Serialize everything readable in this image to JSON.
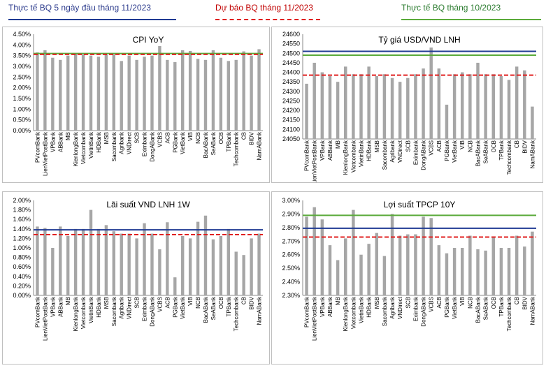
{
  "legend": {
    "actual_5day": {
      "label": "Thực tế BQ 5 ngày đầu tháng 11/2023",
      "color": "#1f3a93"
    },
    "forecast": {
      "label": "Dự báo BQ tháng 11/2023",
      "color": "#e02020"
    },
    "actual_prev": {
      "label": "Thực tế BQ tháng 10/2023",
      "color": "#5aaa3a"
    }
  },
  "chart_data": [
    {
      "type": "bar",
      "title": "CPI YoY",
      "categories": [
        "PVcomBank",
        "LienVietPostBank",
        "VPBank",
        "ABBank",
        "MB",
        "KienlongBank",
        "Vietcombank",
        "VietinBank",
        "HDBank",
        "MSB",
        "Sacombank",
        "Agribank",
        "VNDirect",
        "SCB",
        "Eximbank",
        "DongABank",
        "VCBS",
        "ACB",
        "PGBank",
        "VietBank",
        "VIB",
        "NCB",
        "BacABank",
        "SeABank",
        "OCB",
        "TPBank",
        "Techcombank",
        "CB",
        "BIDV",
        "NamABank"
      ],
      "values": [
        3.65,
        3.75,
        3.4,
        3.3,
        3.5,
        3.6,
        3.55,
        3.5,
        3.45,
        3.55,
        3.55,
        3.25,
        3.5,
        3.3,
        3.45,
        3.5,
        4.05,
        3.3,
        3.2,
        3.75,
        3.72,
        3.35,
        3.3,
        3.75,
        3.4,
        3.25,
        3.3,
        3.7,
        3.5,
        3.8
      ],
      "lines": {
        "actual_5day": null,
        "forecast": 3.56,
        "actual_prev": 3.6
      },
      "ylim": [
        0,
        4.5
      ],
      "yticks": [
        "0.00%",
        "0.50%",
        "1.00%",
        "1.50%",
        "2.00%",
        "2.50%",
        "3.00%",
        "3.50%",
        "4.00%",
        "4.50%"
      ]
    },
    {
      "type": "bar",
      "title": "Tỷ giá USD/VND LNH",
      "categories": [
        "PVcomBank",
        "LienVietPostBank",
        "VPBank",
        "ABBank",
        "MB",
        "KienlongBank",
        "Vietcombank",
        "VietinBank",
        "HDBank",
        "MSB",
        "Sacombank",
        "Agribank",
        "VNDirect",
        "SCB",
        "Eximbank",
        "DongABank",
        "VCBS",
        "ACB",
        "PGBank",
        "VietBank",
        "VIB",
        "NCB",
        "BacABank",
        "SeABank",
        "OCB",
        "TPBank",
        "Techcombank",
        "CB",
        "BIDV",
        "NamABank"
      ],
      "values": [
        24340,
        24450,
        24400,
        24380,
        24350,
        24430,
        24390,
        24390,
        24430,
        24380,
        24390,
        24370,
        24350,
        24370,
        24390,
        24420,
        24530,
        24420,
        24230,
        24390,
        24400,
        24390,
        24450,
        24390,
        24390,
        24380,
        24360,
        24430,
        24410,
        24220
      ],
      "lines": {
        "actual_5day": 24510,
        "forecast": 24385,
        "actual_prev": 24490
      },
      "ylim": [
        24050,
        24600
      ],
      "yticks": [
        "24050",
        "24100",
        "24150",
        "24200",
        "24250",
        "24300",
        "24350",
        "24400",
        "24450",
        "24500",
        "24550",
        "24600"
      ]
    },
    {
      "type": "bar",
      "title": "Lãi suất VND LNH 1W",
      "categories": [
        "PVcomBank",
        "LienVietPostBank",
        "VPBank",
        "ABBank",
        "MB",
        "KienlongBank",
        "Vietcombank",
        "VietinBank",
        "HDBank",
        "MSB",
        "Sacombank",
        "Agribank",
        "VNDirect",
        "SCB",
        "Eximbank",
        "DongABank",
        "VCBS",
        "ACB",
        "PGBank",
        "VietBank",
        "VIB",
        "NCB",
        "BacABank",
        "SeABank",
        "OCB",
        "TPBank",
        "Techcombank",
        "CB",
        "BIDV",
        "NamABank"
      ],
      "values": [
        1.45,
        1.42,
        1.0,
        1.45,
        1.25,
        1.4,
        1.4,
        1.8,
        1.4,
        1.48,
        1.35,
        1.3,
        1.3,
        1.2,
        1.52,
        1.3,
        0.97,
        1.54,
        0.38,
        1.25,
        1.2,
        1.55,
        1.68,
        1.18,
        1.25,
        1.4,
        0.92,
        0.85,
        1.2,
        1.3
      ],
      "lines": {
        "actual_5day": 1.38,
        "forecast": 1.28,
        "actual_prev": null
      },
      "ylim": [
        0,
        2.0
      ],
      "yticks": [
        "0.00%",
        "0.20%",
        "0.40%",
        "0.60%",
        "0.80%",
        "1.00%",
        "1.20%",
        "1.40%",
        "1.60%",
        "1.80%",
        "2.00%"
      ]
    },
    {
      "type": "bar",
      "title": "Lợi suất TPCP 10Y",
      "categories": [
        "PVcomBank",
        "LienVietPostBank",
        "VPBank",
        "ABBank",
        "MB",
        "KienlongBank",
        "Vietcombank",
        "VietinBank",
        "HDBank",
        "MSB",
        "Sacombank",
        "Agribank",
        "VNDirect",
        "SCB",
        "Eximbank",
        "DongABank",
        "VCBS",
        "ACB",
        "PGBank",
        "VietBank",
        "VIB",
        "NCB",
        "BacABank",
        "SeABank",
        "OCB",
        "TPBank",
        "Techcombank",
        "CB",
        "BIDV",
        "NamABank"
      ],
      "values": [
        2.88,
        2.95,
        2.86,
        2.67,
        2.56,
        2.72,
        2.93,
        2.6,
        2.68,
        2.76,
        2.59,
        2.9,
        2.74,
        2.75,
        2.75,
        2.88,
        2.87,
        2.67,
        2.61,
        2.65,
        2.65,
        2.74,
        2.64,
        2.63,
        2.73,
        2.65,
        2.65,
        2.74,
        2.66,
        2.77
      ],
      "lines": {
        "actual_5day": 2.795,
        "forecast": 2.73,
        "actual_prev": 2.89
      },
      "ylim": [
        2.3,
        3.0
      ],
      "yticks": [
        "2.30%",
        "2.40%",
        "2.50%",
        "2.60%",
        "2.70%",
        "2.80%",
        "2.90%",
        "3.00%"
      ]
    }
  ]
}
